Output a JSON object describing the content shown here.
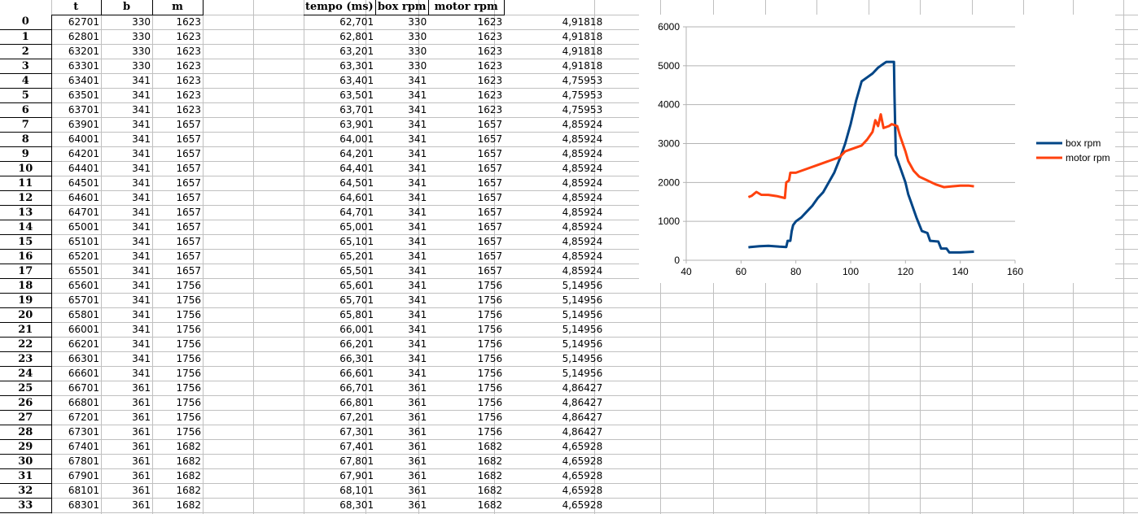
{
  "sheet": {
    "columns": [
      "t",
      "b",
      "m",
      "",
      "",
      "tempo (ms)",
      "box rpm",
      "motor rpm",
      "",
      ""
    ],
    "rows": [
      {
        "idx": "0",
        "t": "62701",
        "b": "330",
        "m": "1623",
        "tempo": "62,701",
        "box": "330",
        "motor": "1623",
        "ratio": "4,91818"
      },
      {
        "idx": "1",
        "t": "62801",
        "b": "330",
        "m": "1623",
        "tempo": "62,801",
        "box": "330",
        "motor": "1623",
        "ratio": "4,91818"
      },
      {
        "idx": "2",
        "t": "63201",
        "b": "330",
        "m": "1623",
        "tempo": "63,201",
        "box": "330",
        "motor": "1623",
        "ratio": "4,91818"
      },
      {
        "idx": "3",
        "t": "63301",
        "b": "330",
        "m": "1623",
        "tempo": "63,301",
        "box": "330",
        "motor": "1623",
        "ratio": "4,91818"
      },
      {
        "idx": "4",
        "t": "63401",
        "b": "341",
        "m": "1623",
        "tempo": "63,401",
        "box": "341",
        "motor": "1623",
        "ratio": "4,75953"
      },
      {
        "idx": "5",
        "t": "63501",
        "b": "341",
        "m": "1623",
        "tempo": "63,501",
        "box": "341",
        "motor": "1623",
        "ratio": "4,75953"
      },
      {
        "idx": "6",
        "t": "63701",
        "b": "341",
        "m": "1623",
        "tempo": "63,701",
        "box": "341",
        "motor": "1623",
        "ratio": "4,75953"
      },
      {
        "idx": "7",
        "t": "63901",
        "b": "341",
        "m": "1657",
        "tempo": "63,901",
        "box": "341",
        "motor": "1657",
        "ratio": "4,85924"
      },
      {
        "idx": "8",
        "t": "64001",
        "b": "341",
        "m": "1657",
        "tempo": "64,001",
        "box": "341",
        "motor": "1657",
        "ratio": "4,85924"
      },
      {
        "idx": "9",
        "t": "64201",
        "b": "341",
        "m": "1657",
        "tempo": "64,201",
        "box": "341",
        "motor": "1657",
        "ratio": "4,85924"
      },
      {
        "idx": "10",
        "t": "64401",
        "b": "341",
        "m": "1657",
        "tempo": "64,401",
        "box": "341",
        "motor": "1657",
        "ratio": "4,85924"
      },
      {
        "idx": "11",
        "t": "64501",
        "b": "341",
        "m": "1657",
        "tempo": "64,501",
        "box": "341",
        "motor": "1657",
        "ratio": "4,85924"
      },
      {
        "idx": "12",
        "t": "64601",
        "b": "341",
        "m": "1657",
        "tempo": "64,601",
        "box": "341",
        "motor": "1657",
        "ratio": "4,85924"
      },
      {
        "idx": "13",
        "t": "64701",
        "b": "341",
        "m": "1657",
        "tempo": "64,701",
        "box": "341",
        "motor": "1657",
        "ratio": "4,85924"
      },
      {
        "idx": "14",
        "t": "65001",
        "b": "341",
        "m": "1657",
        "tempo": "65,001",
        "box": "341",
        "motor": "1657",
        "ratio": "4,85924"
      },
      {
        "idx": "15",
        "t": "65101",
        "b": "341",
        "m": "1657",
        "tempo": "65,101",
        "box": "341",
        "motor": "1657",
        "ratio": "4,85924"
      },
      {
        "idx": "16",
        "t": "65201",
        "b": "341",
        "m": "1657",
        "tempo": "65,201",
        "box": "341",
        "motor": "1657",
        "ratio": "4,85924"
      },
      {
        "idx": "17",
        "t": "65501",
        "b": "341",
        "m": "1657",
        "tempo": "65,501",
        "box": "341",
        "motor": "1657",
        "ratio": "4,85924"
      },
      {
        "idx": "18",
        "t": "65601",
        "b": "341",
        "m": "1756",
        "tempo": "65,601",
        "box": "341",
        "motor": "1756",
        "ratio": "5,14956"
      },
      {
        "idx": "19",
        "t": "65701",
        "b": "341",
        "m": "1756",
        "tempo": "65,701",
        "box": "341",
        "motor": "1756",
        "ratio": "5,14956"
      },
      {
        "idx": "20",
        "t": "65801",
        "b": "341",
        "m": "1756",
        "tempo": "65,801",
        "box": "341",
        "motor": "1756",
        "ratio": "5,14956"
      },
      {
        "idx": "21",
        "t": "66001",
        "b": "341",
        "m": "1756",
        "tempo": "66,001",
        "box": "341",
        "motor": "1756",
        "ratio": "5,14956"
      },
      {
        "idx": "22",
        "t": "66201",
        "b": "341",
        "m": "1756",
        "tempo": "66,201",
        "box": "341",
        "motor": "1756",
        "ratio": "5,14956"
      },
      {
        "idx": "23",
        "t": "66301",
        "b": "341",
        "m": "1756",
        "tempo": "66,301",
        "box": "341",
        "motor": "1756",
        "ratio": "5,14956"
      },
      {
        "idx": "24",
        "t": "66601",
        "b": "341",
        "m": "1756",
        "tempo": "66,601",
        "box": "341",
        "motor": "1756",
        "ratio": "5,14956"
      },
      {
        "idx": "25",
        "t": "66701",
        "b": "361",
        "m": "1756",
        "tempo": "66,701",
        "box": "361",
        "motor": "1756",
        "ratio": "4,86427"
      },
      {
        "idx": "26",
        "t": "66801",
        "b": "361",
        "m": "1756",
        "tempo": "66,801",
        "box": "361",
        "motor": "1756",
        "ratio": "4,86427"
      },
      {
        "idx": "27",
        "t": "67201",
        "b": "361",
        "m": "1756",
        "tempo": "67,201",
        "box": "361",
        "motor": "1756",
        "ratio": "4,86427"
      },
      {
        "idx": "28",
        "t": "67301",
        "b": "361",
        "m": "1756",
        "tempo": "67,301",
        "box": "361",
        "motor": "1756",
        "ratio": "4,86427"
      },
      {
        "idx": "29",
        "t": "67401",
        "b": "361",
        "m": "1682",
        "tempo": "67,401",
        "box": "361",
        "motor": "1682",
        "ratio": "4,65928"
      },
      {
        "idx": "30",
        "t": "67801",
        "b": "361",
        "m": "1682",
        "tempo": "67,801",
        "box": "361",
        "motor": "1682",
        "ratio": "4,65928"
      },
      {
        "idx": "31",
        "t": "67901",
        "b": "361",
        "m": "1682",
        "tempo": "67,901",
        "box": "361",
        "motor": "1682",
        "ratio": "4,65928"
      },
      {
        "idx": "32",
        "t": "68101",
        "b": "361",
        "m": "1682",
        "tempo": "68,101",
        "box": "361",
        "motor": "1682",
        "ratio": "4,65928"
      },
      {
        "idx": "33",
        "t": "68301",
        "b": "361",
        "m": "1682",
        "tempo": "68,301",
        "box": "361",
        "motor": "1682",
        "ratio": "4,65928"
      }
    ]
  },
  "colors": {
    "box_rpm": "#004586",
    "motor_rpm": "#ff420e",
    "gridline": "#b3b3b3",
    "cell_grid": "#c0c0c0"
  },
  "chart_data": {
    "type": "line",
    "title": "",
    "xlabel": "",
    "ylabel": "",
    "xlim": [
      40,
      160
    ],
    "ylim": [
      0,
      6000
    ],
    "xticks": [
      "40",
      "60",
      "80",
      "100",
      "120",
      "140",
      "160"
    ],
    "yticks": [
      "0",
      "1000",
      "2000",
      "3000",
      "4000",
      "5000",
      "6000"
    ],
    "grid": "horizontal",
    "legend": "right",
    "series": [
      {
        "name": "box rpm",
        "points": [
          [
            62.7,
            330
          ],
          [
            63.4,
            341
          ],
          [
            66.7,
            361
          ],
          [
            70,
            370
          ],
          [
            74,
            350
          ],
          [
            76.5,
            340
          ],
          [
            77,
            500
          ],
          [
            78,
            500
          ],
          [
            78.5,
            750
          ],
          [
            79,
            900
          ],
          [
            80,
            1000
          ],
          [
            82,
            1100
          ],
          [
            84,
            1250
          ],
          [
            86,
            1400
          ],
          [
            88,
            1600
          ],
          [
            90,
            1750
          ],
          [
            92,
            2000
          ],
          [
            94,
            2250
          ],
          [
            96,
            2600
          ],
          [
            98,
            3000
          ],
          [
            100,
            3500
          ],
          [
            102,
            4100
          ],
          [
            104,
            4600
          ],
          [
            106,
            4700
          ],
          [
            108,
            4800
          ],
          [
            110,
            4950
          ],
          [
            112,
            5050
          ],
          [
            113,
            5100
          ],
          [
            115,
            5100
          ],
          [
            115.8,
            5100
          ],
          [
            116,
            4200
          ],
          [
            116.5,
            2700
          ],
          [
            118,
            2400
          ],
          [
            120,
            2000
          ],
          [
            121,
            1700
          ],
          [
            122,
            1500
          ],
          [
            124,
            1100
          ],
          [
            126,
            750
          ],
          [
            128,
            700
          ],
          [
            129,
            500
          ],
          [
            132,
            480
          ],
          [
            133,
            300
          ],
          [
            135,
            300
          ],
          [
            136,
            200
          ],
          [
            140,
            200
          ],
          [
            145,
            220
          ]
        ]
      },
      {
        "name": "motor rpm",
        "points": [
          [
            62.7,
            1623
          ],
          [
            63.9,
            1657
          ],
          [
            65.6,
            1756
          ],
          [
            67.4,
            1682
          ],
          [
            70,
            1680
          ],
          [
            73,
            1650
          ],
          [
            76,
            1600
          ],
          [
            76.5,
            2000
          ],
          [
            77.5,
            2050
          ],
          [
            78,
            2250
          ],
          [
            80,
            2250
          ],
          [
            84,
            2350
          ],
          [
            88,
            2450
          ],
          [
            92,
            2550
          ],
          [
            96,
            2650
          ],
          [
            98,
            2800
          ],
          [
            100,
            2850
          ],
          [
            104,
            2950
          ],
          [
            106,
            3100
          ],
          [
            108,
            3300
          ],
          [
            109,
            3600
          ],
          [
            110,
            3450
          ],
          [
            111,
            3750
          ],
          [
            112,
            3400
          ],
          [
            114,
            3450
          ],
          [
            115,
            3500
          ],
          [
            117,
            3450
          ],
          [
            118,
            3200
          ],
          [
            120,
            2800
          ],
          [
            121,
            2550
          ],
          [
            123,
            2300
          ],
          [
            125,
            2150
          ],
          [
            128,
            2050
          ],
          [
            131,
            1950
          ],
          [
            134,
            1880
          ],
          [
            137,
            1900
          ],
          [
            140,
            1920
          ],
          [
            143,
            1920
          ],
          [
            145,
            1900
          ]
        ]
      }
    ]
  }
}
